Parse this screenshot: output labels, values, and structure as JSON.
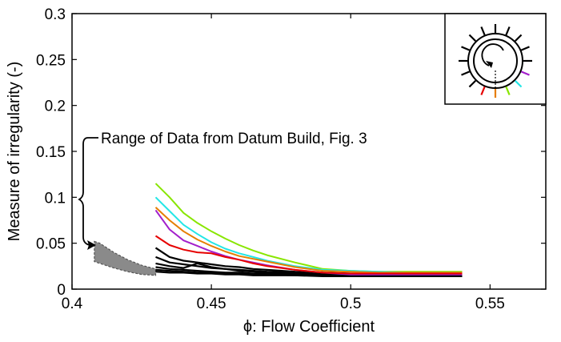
{
  "chart_data": {
    "type": "line",
    "title": "",
    "xlabel": "ϕ: Flow Coefficient",
    "ylabel": "Measure of irregularity (-)",
    "xlim": [
      0.4,
      0.57
    ],
    "ylim": [
      0,
      0.3
    ],
    "grid": false,
    "legend": "none",
    "x_ticks": [
      {
        "value": 0.4,
        "label": "0.4"
      },
      {
        "value": 0.45,
        "label": "0.45"
      },
      {
        "value": 0.5,
        "label": "0.5"
      },
      {
        "value": 0.55,
        "label": "0.55"
      }
    ],
    "y_ticks": [
      {
        "value": 0,
        "label": "0"
      },
      {
        "value": 0.05,
        "label": "0.05"
      },
      {
        "value": 0.1,
        "label": "0.1"
      },
      {
        "value": 0.15,
        "label": "0.15"
      },
      {
        "value": 0.2,
        "label": "0.2"
      },
      {
        "value": 0.25,
        "label": "0.25"
      },
      {
        "value": 0.3,
        "label": "0.3"
      }
    ],
    "annotation": {
      "text": "Range of Data from Datum Build, Fig. 3",
      "target_x": 0.409,
      "target_y": 0.045
    },
    "datum_band": {
      "color": "#8a8a8a",
      "x": [
        0.408,
        0.41,
        0.415,
        0.42,
        0.425,
        0.43
      ],
      "upper": [
        0.052,
        0.05,
        0.04,
        0.032,
        0.026,
        0.022
      ],
      "lower": [
        0.03,
        0.028,
        0.023,
        0.019,
        0.016,
        0.015
      ]
    },
    "x": [
      0.43,
      0.435,
      0.44,
      0.445,
      0.45,
      0.455,
      0.46,
      0.465,
      0.47,
      0.48,
      0.49,
      0.5,
      0.51,
      0.52,
      0.53,
      0.54
    ],
    "series": [
      {
        "color": "#88e600",
        "values": [
          0.115,
          0.1,
          0.083,
          0.072,
          0.063,
          0.055,
          0.048,
          0.042,
          0.037,
          0.029,
          0.022,
          0.02,
          0.019,
          0.019,
          0.019,
          0.019
        ]
      },
      {
        "color": "#22e6e6",
        "values": [
          0.1,
          0.085,
          0.07,
          0.06,
          0.051,
          0.044,
          0.039,
          0.035,
          0.031,
          0.025,
          0.021,
          0.02,
          0.019,
          0.018,
          0.018,
          0.018
        ]
      },
      {
        "color": "#e67e00",
        "values": [
          0.089,
          0.075,
          0.063,
          0.054,
          0.047,
          0.041,
          0.036,
          0.033,
          0.03,
          0.024,
          0.02,
          0.019,
          0.018,
          0.018,
          0.018,
          0.018
        ]
      },
      {
        "color": "#a31fcc",
        "values": [
          0.086,
          0.065,
          0.053,
          0.047,
          0.041,
          0.036,
          0.032,
          0.029,
          0.026,
          0.021,
          0.018,
          0.016,
          0.016,
          0.016,
          0.016,
          0.016
        ]
      },
      {
        "color": "#e60000",
        "values": [
          0.058,
          0.048,
          0.043,
          0.04,
          0.039,
          0.035,
          0.032,
          0.028,
          0.025,
          0.021,
          0.018,
          0.017,
          0.017,
          0.017,
          0.017,
          0.017
        ]
      },
      {
        "color": "#000000",
        "values": [
          0.045,
          0.035,
          0.031,
          0.029,
          0.027,
          0.025,
          0.024,
          0.022,
          0.021,
          0.019,
          0.018,
          0.017,
          0.017,
          0.016,
          0.016,
          0.016
        ]
      },
      {
        "color": "#000000",
        "values": [
          0.035,
          0.029,
          0.027,
          0.025,
          0.023,
          0.022,
          0.021,
          0.02,
          0.019,
          0.018,
          0.017,
          0.016,
          0.016,
          0.016,
          0.016,
          0.016
        ]
      },
      {
        "color": "#000000",
        "values": [
          0.028,
          0.025,
          0.023,
          0.028,
          0.024,
          0.022,
          0.02,
          0.019,
          0.018,
          0.017,
          0.016,
          0.016,
          0.015,
          0.015,
          0.015,
          0.015
        ]
      },
      {
        "color": "#000000",
        "values": [
          0.024,
          0.022,
          0.021,
          0.02,
          0.019,
          0.018,
          0.018,
          0.017,
          0.017,
          0.016,
          0.015,
          0.015,
          0.015,
          0.015,
          0.015,
          0.015
        ]
      },
      {
        "color": "#000000",
        "values": [
          0.021,
          0.02,
          0.019,
          0.018,
          0.018,
          0.017,
          0.017,
          0.016,
          0.016,
          0.015,
          0.015,
          0.014,
          0.014,
          0.014,
          0.014,
          0.014
        ]
      },
      {
        "color": "#000000",
        "values": [
          0.019,
          0.018,
          0.018,
          0.017,
          0.017,
          0.016,
          0.016,
          0.015,
          0.015,
          0.015,
          0.014,
          0.014,
          0.014,
          0.014,
          0.014,
          0.014
        ]
      }
    ],
    "inset": {
      "icon": "rotor-probe-layout-icon",
      "probe_colors": [
        "#e60000",
        "#e67e00",
        "#88e600",
        "#22e6e6",
        "#a31fcc"
      ]
    }
  }
}
